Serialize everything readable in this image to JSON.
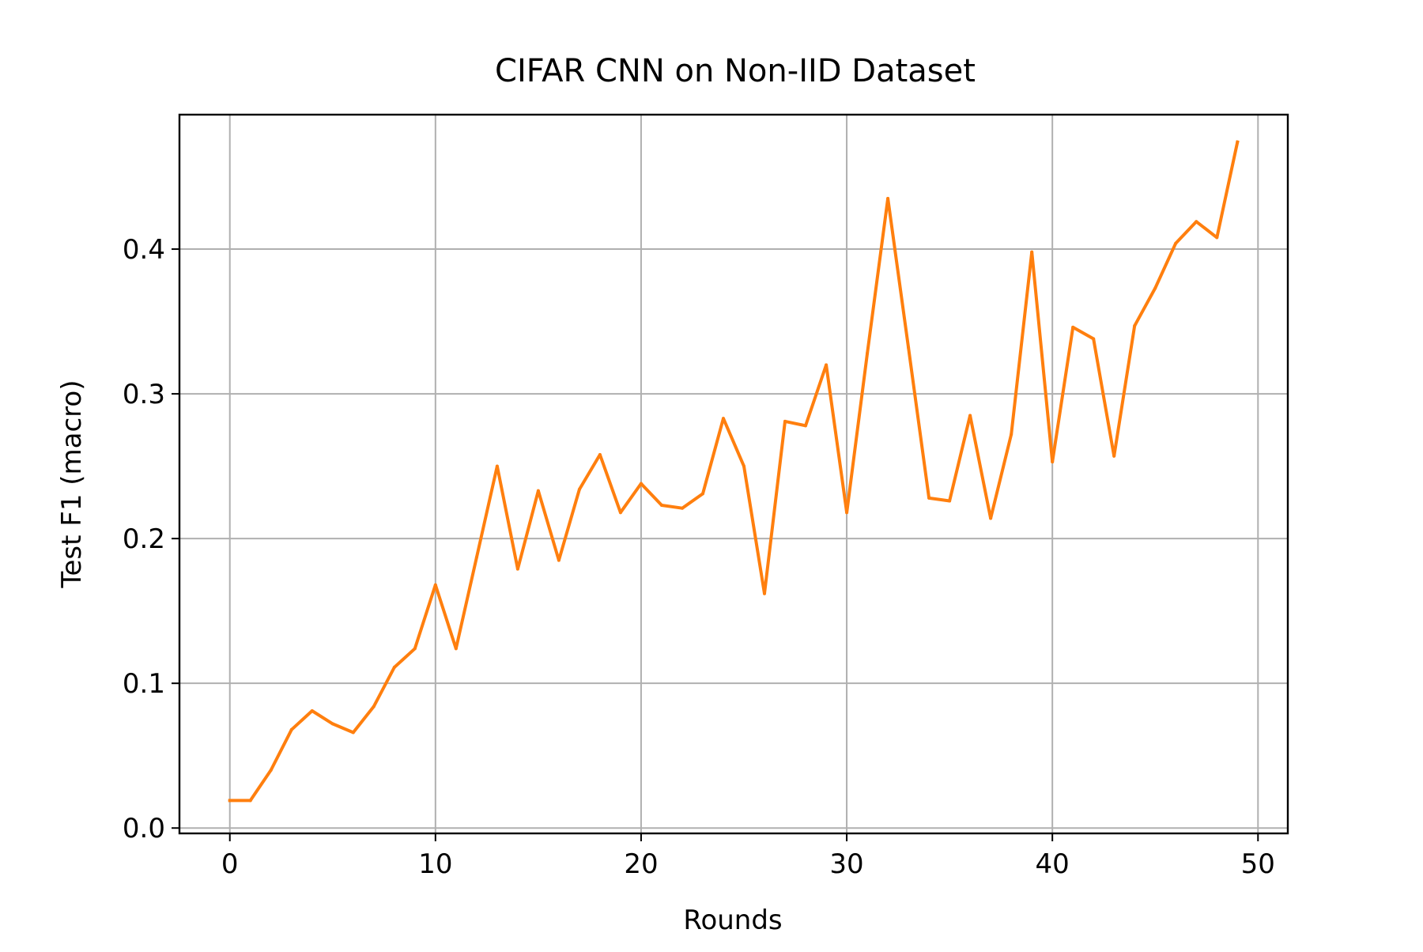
{
  "chart_data": {
    "type": "line",
    "title": "CIFAR CNN on Non-IID Dataset",
    "xlabel": "Rounds",
    "ylabel": "Test F1 (macro)",
    "xlim": [
      -2.45,
      51.45
    ],
    "ylim": [
      -0.0037,
      0.4929
    ],
    "xticks": [
      0,
      10,
      20,
      30,
      40,
      50
    ],
    "xtick_labels": [
      "0",
      "10",
      "20",
      "30",
      "40",
      "50"
    ],
    "yticks": [
      0.0,
      0.1,
      0.2,
      0.3,
      0.4
    ],
    "ytick_labels": [
      "0.0",
      "0.1",
      "0.2",
      "0.3",
      "0.4"
    ],
    "grid": true,
    "legend": "none",
    "series": [
      {
        "color": "#ff7f0e",
        "x": [
          0,
          1,
          2,
          3,
          4,
          5,
          6,
          7,
          8,
          9,
          10,
          11,
          12,
          13,
          14,
          15,
          16,
          17,
          18,
          19,
          20,
          21,
          22,
          23,
          24,
          25,
          26,
          27,
          28,
          29,
          30,
          31,
          32,
          33,
          34,
          35,
          36,
          37,
          38,
          39,
          40,
          41,
          42,
          43,
          44,
          45,
          46,
          47,
          48,
          49
        ],
        "values": [
          0.019,
          0.019,
          0.04,
          0.068,
          0.081,
          0.072,
          0.066,
          0.084,
          0.111,
          0.124,
          0.168,
          0.124,
          0.187,
          0.25,
          0.179,
          0.233,
          0.185,
          0.234,
          0.258,
          0.218,
          0.238,
          0.223,
          0.221,
          0.231,
          0.283,
          0.25,
          0.162,
          0.281,
          0.278,
          0.32,
          0.218,
          0.328,
          0.435,
          0.332,
          0.228,
          0.226,
          0.285,
          0.214,
          0.272,
          0.398,
          0.253,
          0.346,
          0.338,
          0.257,
          0.347,
          0.373,
          0.404,
          0.419,
          0.408,
          0.474
        ]
      }
    ]
  }
}
